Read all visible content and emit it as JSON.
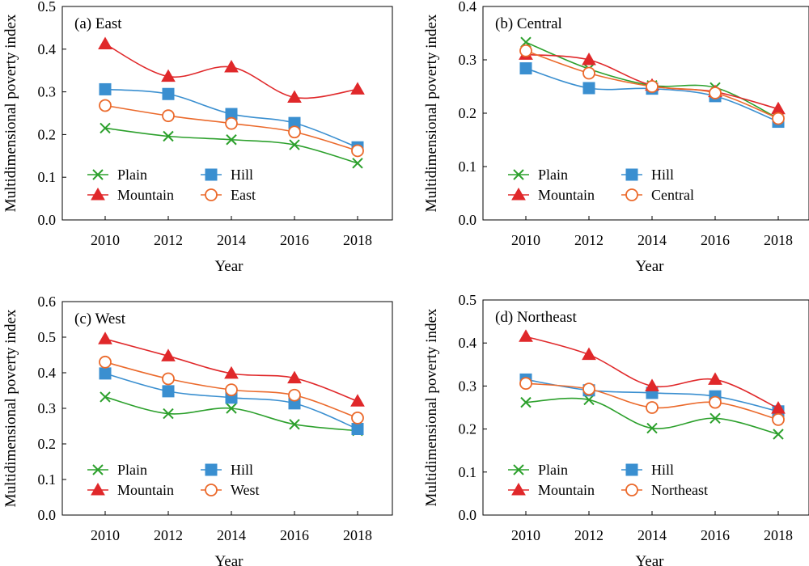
{
  "colors": {
    "plain": "#2ca02c",
    "hill": "#3a8fd0",
    "mountain": "#e0282a",
    "region": "#eb6a2c"
  },
  "chart_data": [
    {
      "type": "line",
      "title": "(a) East",
      "xlabel": "Year",
      "ylabel": "Multidimensional poverty index",
      "x": [
        2010,
        2012,
        2014,
        2016,
        2018
      ],
      "x_tick_labels": [
        "2010",
        "2012",
        "2014",
        "2016",
        "2018"
      ],
      "ylim": [
        0,
        0.5
      ],
      "y_tick_labels": [
        "0.0",
        "0.1",
        "0.2",
        "0.3",
        "0.4",
        "0.5"
      ],
      "legend_position": "bottom-left, two columns",
      "grid": false,
      "series": [
        {
          "name": "Plain",
          "marker": "cross",
          "color_key": "plain",
          "values": [
            0.215,
            0.196,
            0.188,
            0.176,
            0.133
          ]
        },
        {
          "name": "Hill",
          "marker": "square",
          "color_key": "hill",
          "values": [
            0.306,
            0.295,
            0.248,
            0.227,
            0.17
          ]
        },
        {
          "name": "Mountain",
          "marker": "triangle",
          "color_key": "mountain",
          "values": [
            0.412,
            0.336,
            0.358,
            0.287,
            0.306
          ]
        },
        {
          "name": "East",
          "marker": "circle",
          "color_key": "region",
          "values": [
            0.268,
            0.244,
            0.226,
            0.206,
            0.162
          ]
        }
      ]
    },
    {
      "type": "line",
      "title": "(b) Central",
      "xlabel": "Year",
      "ylabel": "Multidimensional poverty index",
      "x": [
        2010,
        2012,
        2014,
        2016,
        2018
      ],
      "x_tick_labels": [
        "2010",
        "2012",
        "2014",
        "2016",
        "2018"
      ],
      "ylim": [
        0,
        0.4
      ],
      "y_tick_labels": [
        "0.0",
        "0.1",
        "0.2",
        "0.3",
        "0.4"
      ],
      "legend_position": "bottom-left, two columns",
      "grid": false,
      "series": [
        {
          "name": "Plain",
          "marker": "cross",
          "color_key": "plain",
          "values": [
            0.333,
            0.283,
            0.252,
            0.248,
            0.19
          ]
        },
        {
          "name": "Hill",
          "marker": "square",
          "color_key": "hill",
          "values": [
            0.284,
            0.247,
            0.246,
            0.232,
            0.184
          ]
        },
        {
          "name": "Mountain",
          "marker": "triangle",
          "color_key": "mountain",
          "values": [
            0.31,
            0.3,
            0.252,
            0.24,
            0.208
          ]
        },
        {
          "name": "Central",
          "marker": "circle",
          "color_key": "region",
          "values": [
            0.317,
            0.275,
            0.25,
            0.238,
            0.19
          ]
        }
      ]
    },
    {
      "type": "line",
      "title": "(c) West",
      "xlabel": "Year",
      "ylabel": "Multidimensional poverty index",
      "x": [
        2010,
        2012,
        2014,
        2016,
        2018
      ],
      "x_tick_labels": [
        "2010",
        "2012",
        "2014",
        "2016",
        "2018"
      ],
      "ylim": [
        0,
        0.6
      ],
      "y_tick_labels": [
        "0.0",
        "0.1",
        "0.2",
        "0.3",
        "0.4",
        "0.5",
        "0.6"
      ],
      "legend_position": "bottom-left, two columns",
      "grid": false,
      "series": [
        {
          "name": "Plain",
          "marker": "cross",
          "color_key": "plain",
          "values": [
            0.332,
            0.285,
            0.3,
            0.255,
            0.237
          ]
        },
        {
          "name": "Hill",
          "marker": "square",
          "color_key": "hill",
          "values": [
            0.398,
            0.348,
            0.33,
            0.314,
            0.242
          ]
        },
        {
          "name": "Mountain",
          "marker": "triangle",
          "color_key": "mountain",
          "values": [
            0.495,
            0.447,
            0.398,
            0.385,
            0.32
          ]
        },
        {
          "name": "West",
          "marker": "circle",
          "color_key": "region",
          "values": [
            0.43,
            0.383,
            0.352,
            0.337,
            0.273
          ]
        }
      ]
    },
    {
      "type": "line",
      "title": "(d) Northeast",
      "xlabel": "Year",
      "ylabel": "Multidimensional poverty index",
      "x": [
        2010,
        2012,
        2014,
        2016,
        2018
      ],
      "x_tick_labels": [
        "2010",
        "2012",
        "2014",
        "2016",
        "2018"
      ],
      "ylim": [
        0,
        0.5
      ],
      "y_tick_labels": [
        "0.0",
        "0.1",
        "0.2",
        "0.3",
        "0.4",
        "0.5"
      ],
      "legend_position": "bottom-left, two columns",
      "grid": false,
      "series": [
        {
          "name": "Plain",
          "marker": "cross",
          "color_key": "plain",
          "values": [
            0.262,
            0.268,
            0.202,
            0.225,
            0.188
          ]
        },
        {
          "name": "Hill",
          "marker": "square",
          "color_key": "hill",
          "values": [
            0.315,
            0.29,
            0.284,
            0.276,
            0.241
          ]
        },
        {
          "name": "Mountain",
          "marker": "triangle",
          "color_key": "mountain",
          "values": [
            0.415,
            0.373,
            0.3,
            0.315,
            0.248
          ]
        },
        {
          "name": "Northeast",
          "marker": "circle",
          "color_key": "region",
          "values": [
            0.306,
            0.293,
            0.25,
            0.262,
            0.222
          ]
        }
      ]
    }
  ]
}
